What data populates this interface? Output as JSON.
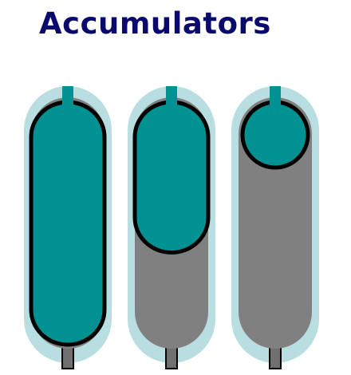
{
  "title": "Accumulators",
  "colors": {
    "title": "#0a0a6e",
    "shell": "#b9dee2",
    "bladder_gas": "#009292",
    "hydraulic_fluid": "#808080",
    "outline": "#000000",
    "port": "#707070"
  },
  "accumulators": [
    {
      "name": "accumulator-empty",
      "gas_fraction": 1.0
    },
    {
      "name": "accumulator-partial",
      "gas_fraction": 0.62
    },
    {
      "name": "accumulator-charged",
      "gas_fraction": 0.27
    }
  ]
}
